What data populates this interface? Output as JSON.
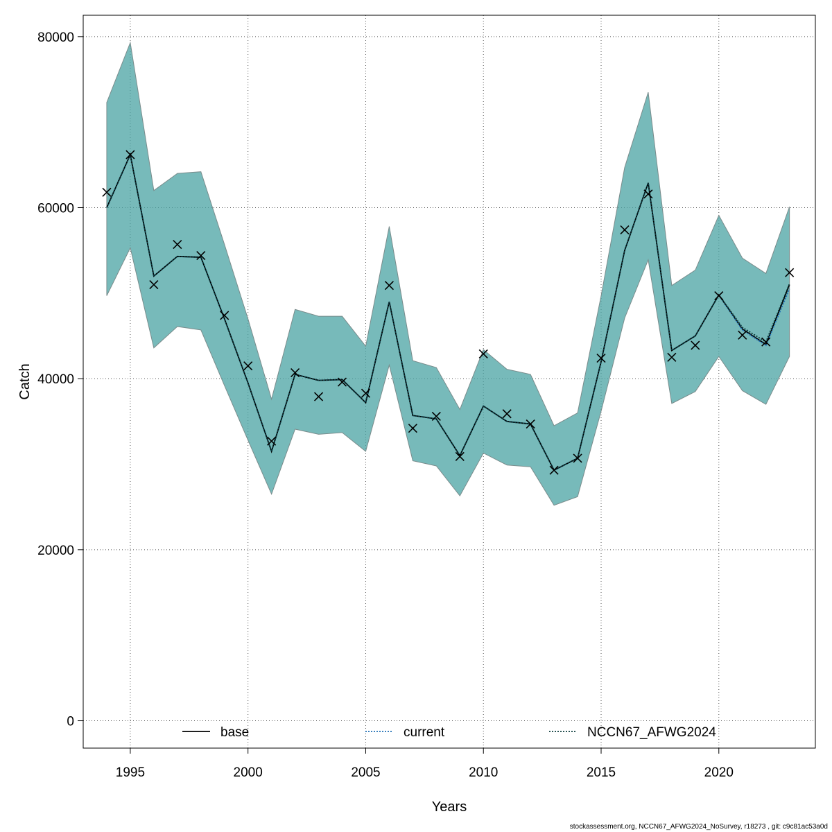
{
  "chart_data": {
    "type": "line",
    "xlabel": "Years",
    "ylabel": "Catch",
    "xlim": [
      1993,
      2024.1
    ],
    "ylim": [
      -3200,
      82500
    ],
    "x_ticks": [
      1995,
      2000,
      2005,
      2010,
      2015,
      2020
    ],
    "y_ticks": [
      0,
      20000,
      40000,
      60000,
      80000
    ],
    "grid": true,
    "legend_position": "bottom",
    "colors": {
      "band": "#4aa3a3",
      "band_edge": "#7a8c8c",
      "base": "#000000",
      "current": "#1f6fb5",
      "nccn": "#0b3b3b",
      "observed": "#000000"
    },
    "legend": [
      {
        "label": "base",
        "style": "solid",
        "color": "#000000"
      },
      {
        "label": "current",
        "style": "dotted",
        "color": "#1f6fb5"
      },
      {
        "label": "NCCN67_AFWG2024",
        "style": "dotted",
        "color": "#0b3b3b"
      }
    ],
    "x": [
      1994,
      1995,
      1996,
      1997,
      1998,
      1999,
      2000,
      2001,
      2002,
      2003,
      2004,
      2005,
      2006,
      2007,
      2008,
      2009,
      2010,
      2011,
      2012,
      2013,
      2014,
      2015,
      2016,
      2017,
      2018,
      2019,
      2020,
      2021,
      2022,
      2023
    ],
    "series": [
      {
        "name": "base",
        "values": [
          60000,
          66200,
          52000,
          54300,
          54200,
          47000,
          39500,
          31500,
          40500,
          39800,
          39900,
          37200,
          49000,
          35700,
          35300,
          31000,
          36800,
          35000,
          34700,
          29300,
          30700,
          42000,
          55000,
          62900,
          43300,
          45000,
          49800,
          45800,
          44000,
          51000
        ],
        "lower": [
          49700,
          55300,
          43600,
          46100,
          45700,
          39200,
          32800,
          26500,
          34100,
          33500,
          33700,
          31500,
          41600,
          30400,
          29800,
          26300,
          31300,
          29900,
          29700,
          25200,
          26200,
          36200,
          47100,
          53900,
          37100,
          38500,
          42600,
          38600,
          37000,
          42600
        ],
        "upper": [
          72300,
          79300,
          62000,
          64000,
          64200,
          55700,
          47000,
          37600,
          48100,
          47300,
          47300,
          43800,
          57800,
          42100,
          41300,
          36400,
          43400,
          41100,
          40500,
          34500,
          36000,
          49700,
          64700,
          73500,
          50900,
          52700,
          59100,
          54100,
          52300,
          60100
        ]
      },
      {
        "name": "current",
        "values": [
          60000,
          66200,
          52000,
          54300,
          54200,
          47000,
          39500,
          31500,
          40500,
          39800,
          39900,
          37200,
          49000,
          35700,
          35300,
          31000,
          36800,
          35000,
          34700,
          29300,
          30700,
          42000,
          55000,
          62900,
          43300,
          45000,
          49800,
          45700,
          43900,
          50500
        ]
      },
      {
        "name": "NCCN67_AFWG2024",
        "values": [
          60000,
          66200,
          52000,
          54300,
          54200,
          47000,
          39500,
          31500,
          40500,
          39800,
          39900,
          37200,
          49000,
          35700,
          35300,
          31000,
          36800,
          35000,
          34700,
          29300,
          30700,
          42000,
          55000,
          62900,
          43300,
          45000,
          49800,
          46000,
          44300,
          51100
        ]
      }
    ],
    "observed": {
      "x": [
        1994,
        1995,
        1996,
        1997,
        1998,
        1999,
        2000,
        2001,
        2002,
        2003,
        2004,
        2005,
        2006,
        2007,
        2008,
        2009,
        2010,
        2011,
        2012,
        2013,
        2014,
        2015,
        2016,
        2017,
        2018,
        2019,
        2020,
        2021,
        2022,
        2023
      ],
      "values": [
        61800,
        66200,
        51000,
        55700,
        54400,
        47400,
        41500,
        32700,
        40700,
        37900,
        39600,
        38300,
        50900,
        34200,
        35600,
        30900,
        42900,
        35900,
        34700,
        29300,
        30700,
        42400,
        57400,
        61600,
        42500,
        43900,
        49700,
        45100,
        44300,
        52400
      ]
    }
  },
  "footer": "stockassessment.org, NCCN67_AFWG2024_NoSurvey, r18273 , git: c9c81ac53a0d"
}
